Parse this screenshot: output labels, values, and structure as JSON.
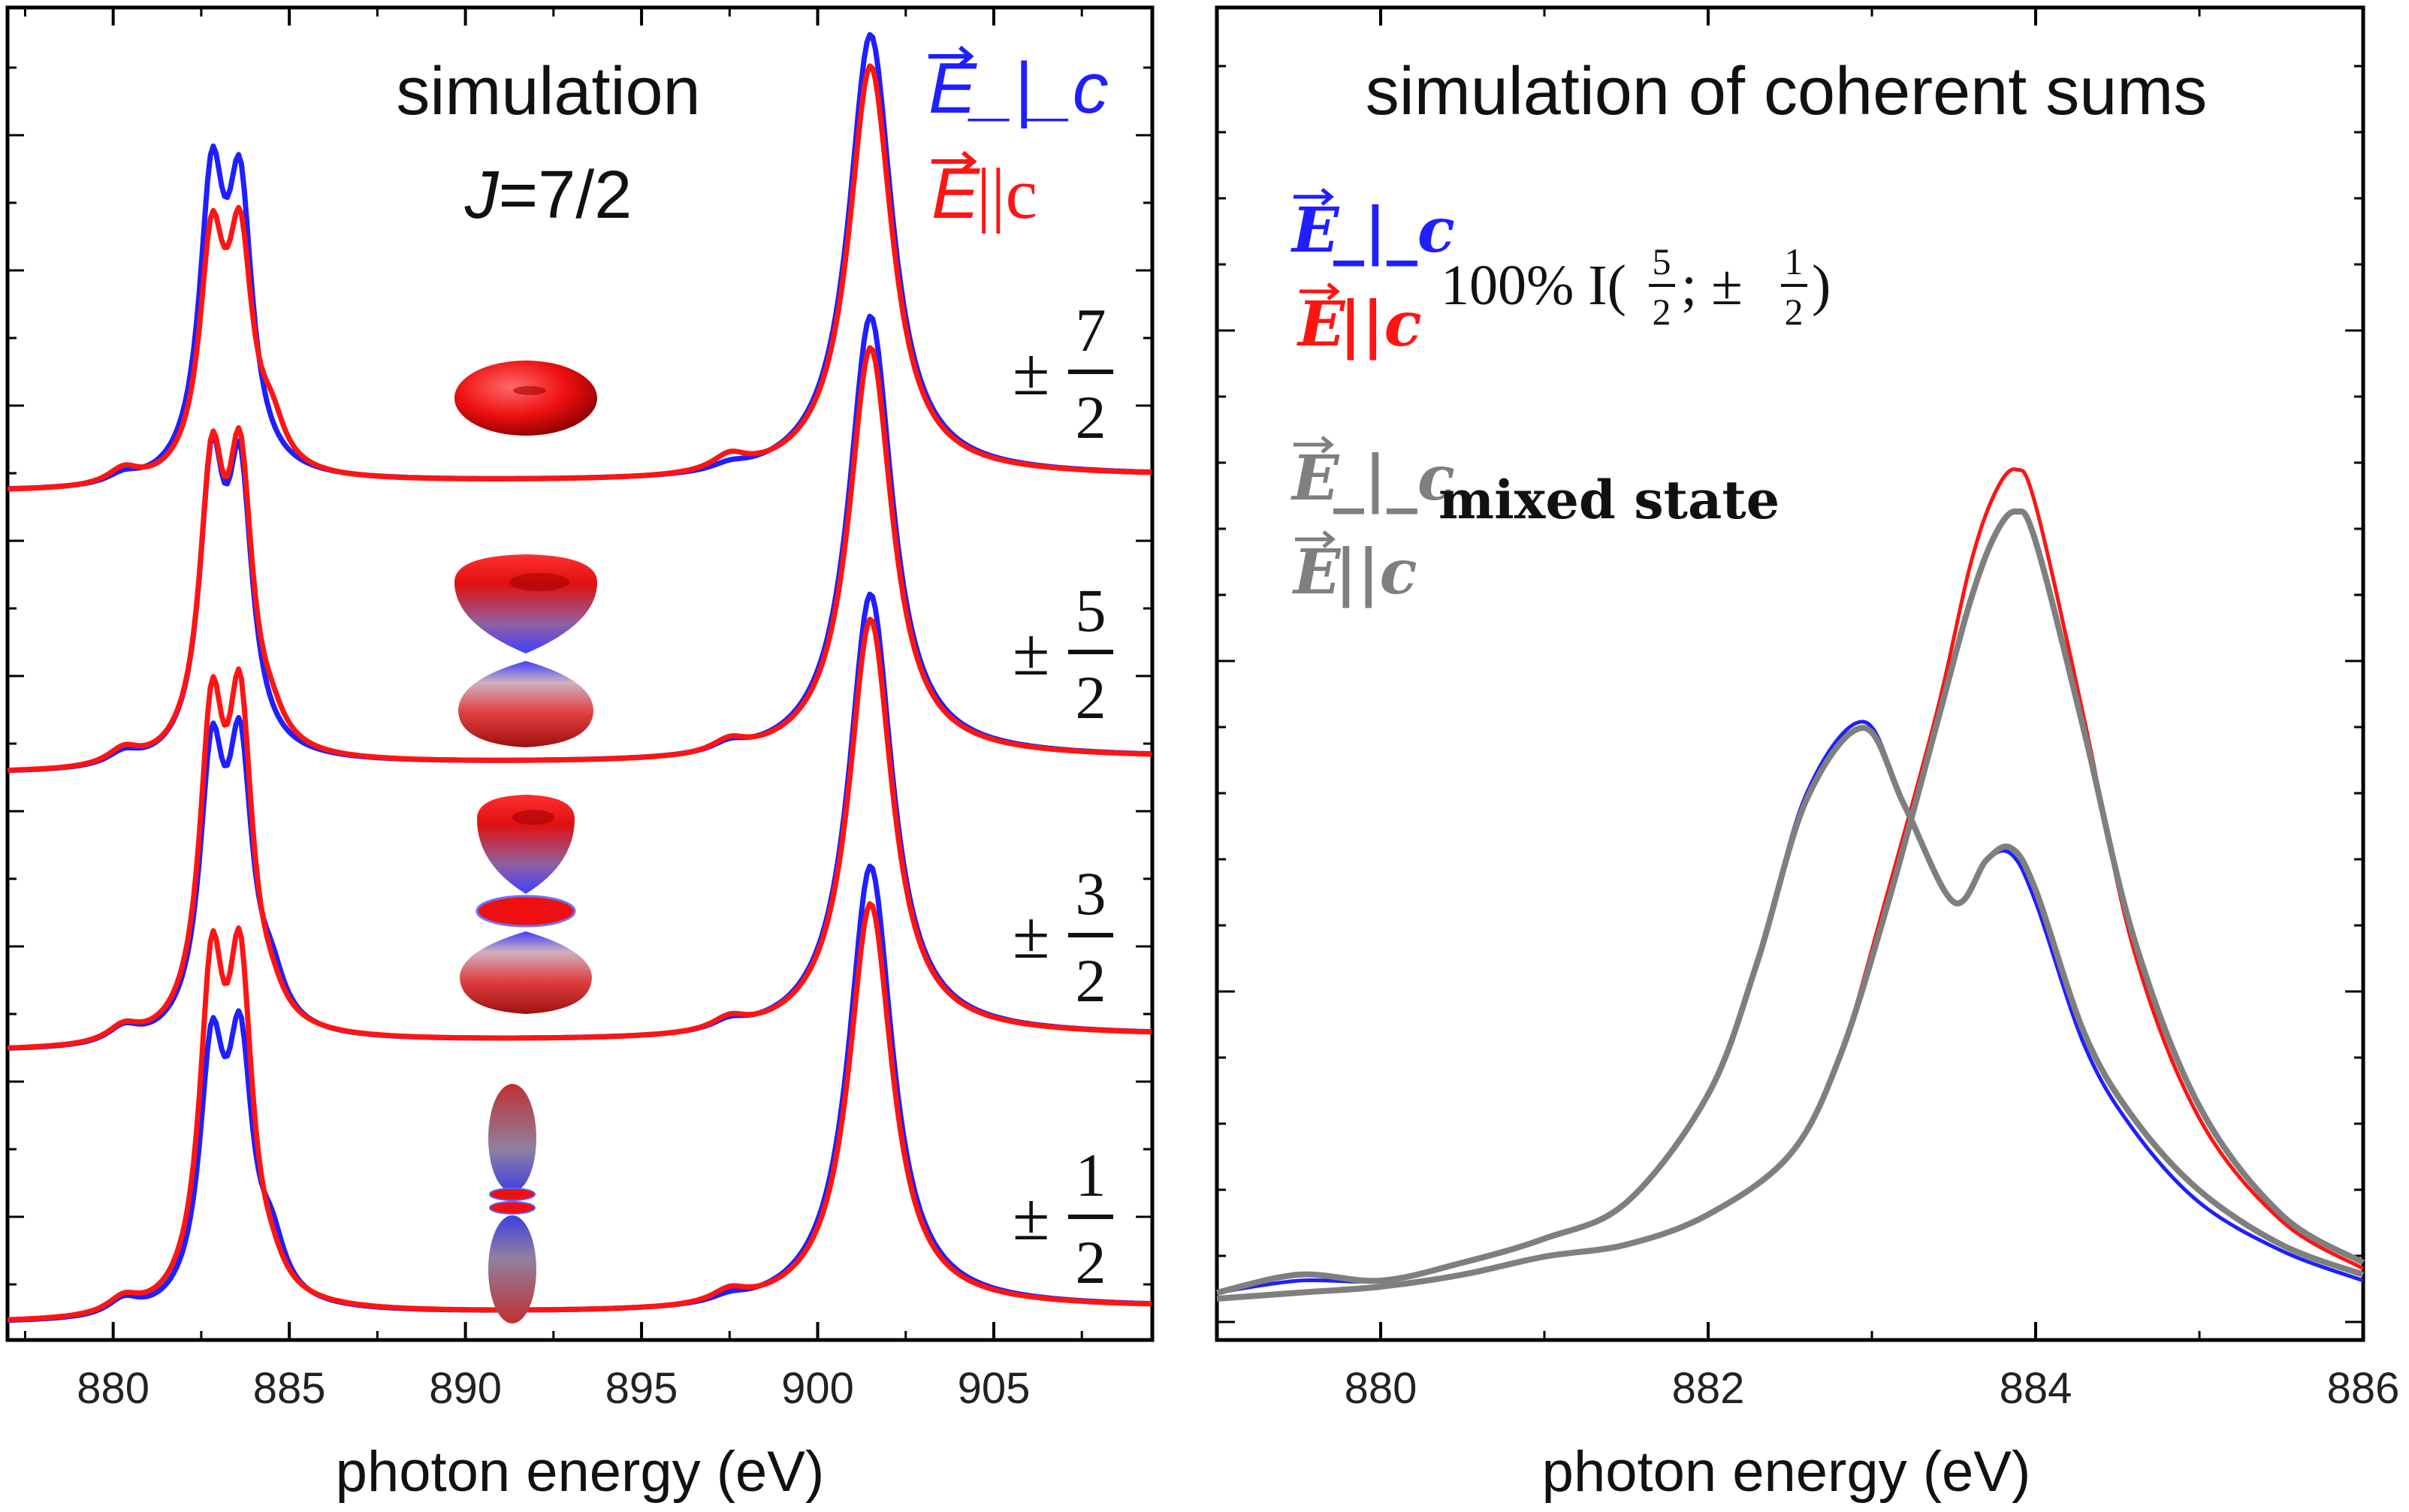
{
  "colors": {
    "perp": "#1f1fff",
    "par": "#ff1414",
    "mixed": "#7f7f7f",
    "frame": "#000000"
  },
  "chart_data": [
    {
      "type": "line",
      "panel": "left",
      "title_line1": "simulation",
      "title_line2_italic": "J",
      "title_line2_rest": "=7/2",
      "xlabel": "photon energy (eV)",
      "xlim": [
        877,
        909.5
      ],
      "xticks": [
        "880",
        "885",
        "890",
        "895",
        "900",
        "905"
      ],
      "legend": [
        {
          "symbol": "E",
          "rest": "_|_c",
          "color": "#1f1fff"
        },
        {
          "symbol": "E",
          "rest": "||c",
          "color": "#ff1414"
        }
      ],
      "states": [
        {
          "sign": "±",
          "num": "7",
          "den": "2",
          "shape": "torus"
        },
        {
          "sign": "±",
          "num": "5",
          "den": "2",
          "shape": "cup-pair"
        },
        {
          "sign": "±",
          "num": "3",
          "den": "2",
          "shape": "cup-ring-pair"
        },
        {
          "sign": "±",
          "num": "1",
          "den": "2",
          "shape": "elongated"
        }
      ],
      "series_note": "Each state shows two simulated spectra (E perpendicular c in blue, E parallel c in red), stacked with vertical offsets.",
      "peaks": {
        "m3_peak_energy": [
          880.3,
          882.8,
          883.6,
          884.5,
          897.5,
          901.5
        ],
        "perp_heights": [
          [
            0.03,
            0.88,
            0.84,
            0.0,
            0.02,
            1.4
          ],
          [
            0.04,
            0.86,
            0.83,
            0.0,
            0.03,
            1.4
          ],
          [
            0.05,
            0.82,
            0.82,
            0.12,
            0.03,
            1.4
          ],
          [
            0.05,
            0.76,
            0.76,
            0.15,
            0.02,
            1.4
          ]
        ],
        "par_heights": [
          [
            0.05,
            0.7,
            0.69,
            0.12,
            0.05,
            1.3
          ],
          [
            0.05,
            0.86,
            0.86,
            0.06,
            0.04,
            1.3
          ],
          [
            0.05,
            0.94,
            0.96,
            0.05,
            0.04,
            1.32
          ],
          [
            0.05,
            0.99,
            0.99,
            0.05,
            0.04,
            1.28
          ]
        ]
      }
    },
    {
      "type": "line",
      "panel": "right",
      "title": "simulation of coherent sums",
      "xlabel": "photon energy (eV)",
      "xlim": [
        879,
        886
      ],
      "xticks": [
        "880",
        "882",
        "884",
        "886"
      ],
      "legend_pure": {
        "perp_symbol": "E",
        "perp_rest": "_|_c",
        "par_symbol": "E",
        "par_rest": "||c",
        "text_prefix": "100% I(",
        "num1": "5",
        "den1": "2",
        "sep": "; ±",
        "num2": "1",
        "den2": "2",
        "text_suffix": ")"
      },
      "legend_mixed": {
        "perp_symbol": "E",
        "perp_rest": "_|_c",
        "par_symbol": "E",
        "par_rest": "||c",
        "text": "mixed state"
      },
      "series": [
        {
          "name": "E_|_c 100% I(5/2;±1/2)",
          "color": "#1f1fff",
          "x": [
            879.0,
            879.5,
            880.0,
            880.5,
            881.0,
            881.5,
            882.0,
            882.3,
            882.6,
            882.95,
            883.2,
            883.5,
            883.7,
            883.85,
            884.0,
            884.3,
            884.6,
            885.0,
            885.5,
            886.0
          ],
          "y": [
            0.03,
            0.05,
            0.05,
            0.08,
            0.12,
            0.18,
            0.36,
            0.58,
            0.86,
            0.98,
            0.84,
            0.68,
            0.75,
            0.76,
            0.68,
            0.44,
            0.3,
            0.18,
            0.1,
            0.05
          ]
        },
        {
          "name": "E||c 100% I(5/2;±1/2)",
          "color": "#ff1414",
          "x": [
            879.0,
            879.5,
            880.0,
            880.5,
            881.0,
            881.5,
            882.0,
            882.5,
            882.8,
            883.1,
            883.4,
            883.6,
            883.75,
            883.88,
            884.0,
            884.3,
            884.6,
            885.0,
            885.5,
            886.0
          ],
          "y": [
            0.02,
            0.03,
            0.04,
            0.06,
            0.09,
            0.11,
            0.16,
            0.26,
            0.42,
            0.7,
            1.0,
            1.24,
            1.36,
            1.4,
            1.34,
            0.98,
            0.6,
            0.32,
            0.15,
            0.07
          ]
        },
        {
          "name": "E_|_c mixed state",
          "color": "#7f7f7f",
          "x": [
            879.0,
            879.5,
            880.0,
            880.5,
            881.0,
            881.5,
            882.0,
            882.3,
            882.6,
            882.95,
            883.2,
            883.5,
            883.7,
            883.85,
            884.0,
            884.3,
            884.6,
            885.0,
            885.5,
            886.0
          ],
          "y": [
            0.03,
            0.06,
            0.05,
            0.08,
            0.12,
            0.18,
            0.36,
            0.58,
            0.85,
            0.97,
            0.84,
            0.68,
            0.75,
            0.77,
            0.7,
            0.46,
            0.32,
            0.2,
            0.11,
            0.06
          ]
        },
        {
          "name": "E||c mixed state",
          "color": "#7f7f7f",
          "x": [
            879.0,
            879.5,
            880.0,
            880.5,
            881.0,
            881.5,
            882.0,
            882.5,
            882.8,
            883.1,
            883.4,
            883.6,
            883.75,
            883.88,
            884.0,
            884.3,
            884.6,
            885.0,
            885.5,
            886.0
          ],
          "y": [
            0.02,
            0.03,
            0.04,
            0.06,
            0.09,
            0.11,
            0.16,
            0.26,
            0.42,
            0.68,
            0.98,
            1.18,
            1.29,
            1.33,
            1.28,
            0.96,
            0.62,
            0.34,
            0.16,
            0.08
          ]
        }
      ],
      "ylim": [
        0,
        1.5
      ]
    }
  ]
}
